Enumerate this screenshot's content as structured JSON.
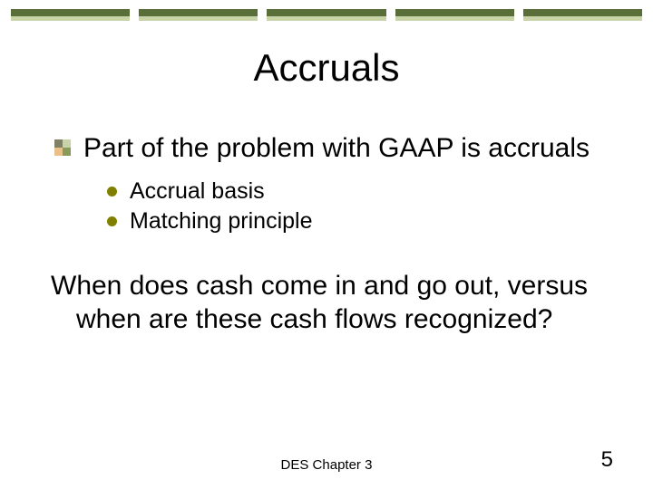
{
  "theme": {
    "bar_dark": "#5a6e3a",
    "bar_light": "#c8d4a8",
    "square_bullet_colors": [
      "#808066",
      "#c8d4a8",
      "#e8c088",
      "#8a9a5b"
    ],
    "dot_bullet_color": "#808000"
  },
  "title": "Accruals",
  "main_bullet": "Part of the problem with GAAP is accruals",
  "sub_bullets": [
    "Accrual basis",
    "Matching principle"
  ],
  "body_text": "When does cash come in and go out, versus when are these cash flows recognized?",
  "footer": "DES Chapter 3",
  "page_number": "5",
  "top_bar_count": 5
}
